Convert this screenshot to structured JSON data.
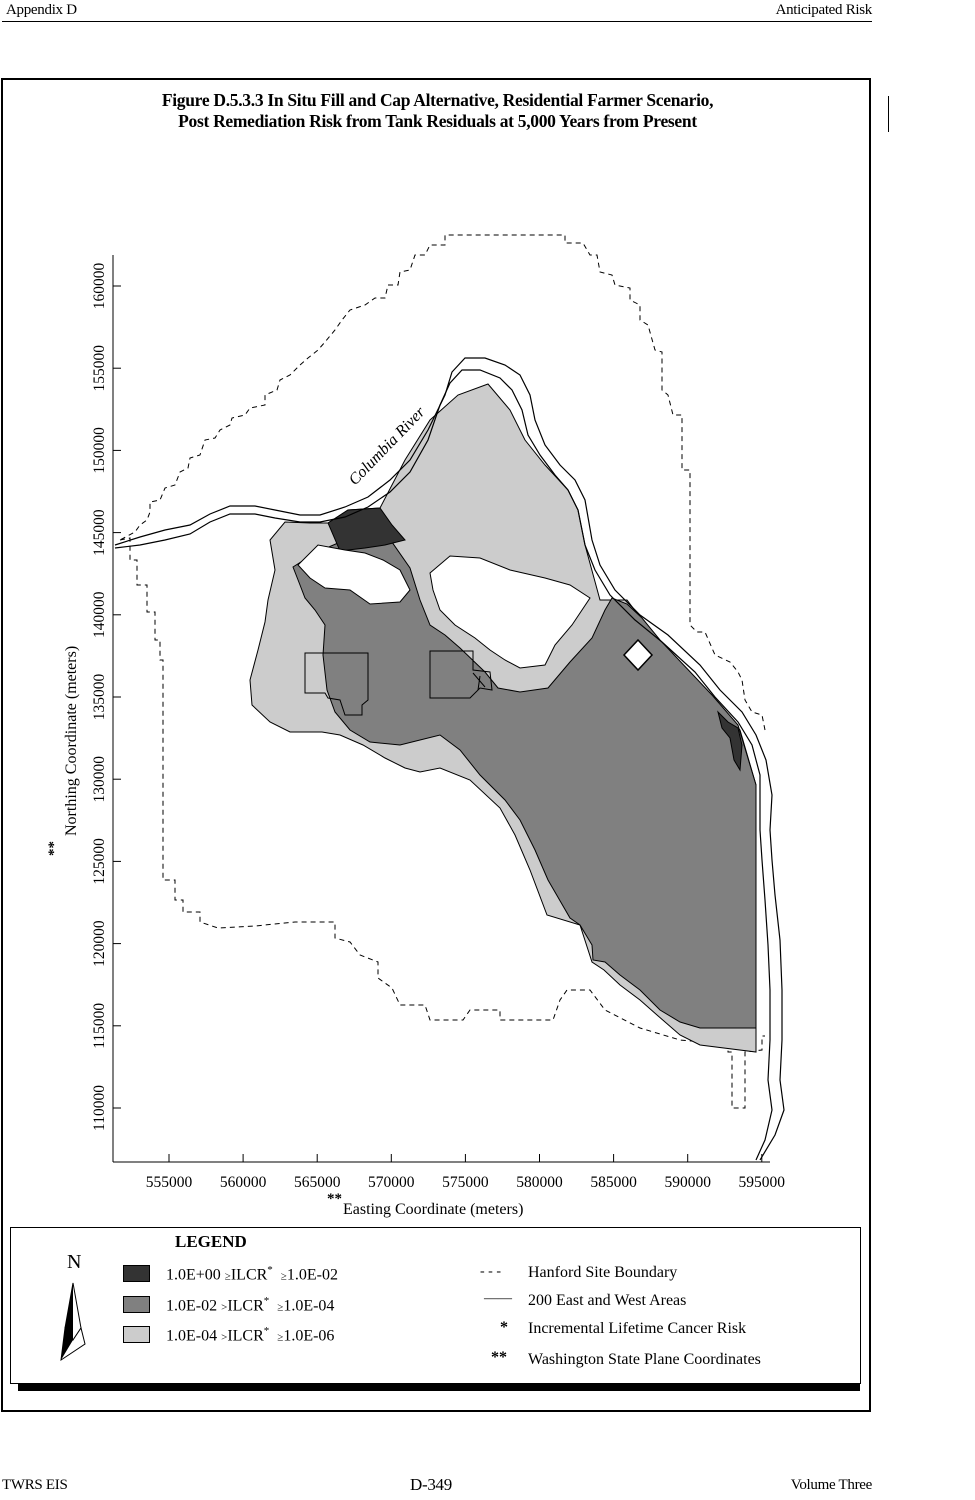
{
  "header": {
    "left": "Appendix D",
    "right": "Anticipated Risk"
  },
  "figure": {
    "title_line1": "Figure D.5.3.3  In Situ Fill and Cap Alternative, Residential Farmer Scenario,",
    "title_line2": "Post Remediation Risk from Tank Residuals at 5,000 Years from Present"
  },
  "map": {
    "river_label": "Columbia River",
    "x_axis_label": "Easting Coordinate (meters)",
    "x_axis_prefix": "**",
    "y_axis_label": "Northing Coordinate (meters)",
    "y_axis_prefix": "**",
    "x_ticks": [
      "555000",
      "560000",
      "565000",
      "570000",
      "575000",
      "580000",
      "585000",
      "590000",
      "595000"
    ],
    "y_ticks": [
      "110000",
      "115000",
      "120000",
      "125000",
      "130000",
      "135000",
      "140000",
      "145000",
      "150000",
      "155000",
      "160000"
    ],
    "colors": {
      "high_risk": "#333333",
      "mid_risk": "#808080",
      "low_risk": "#cccccc"
    }
  },
  "legend": {
    "title": "LEGEND",
    "north_symbol": "N",
    "entries": [
      {
        "range_hi": "1.0E+00",
        "op1": "≥",
        "label": "ILCR",
        "star": "*",
        "op2": "≥",
        "range_lo": "1.0E-02"
      },
      {
        "range_hi": "1.0E-02",
        "op1": ">",
        "label": "ILCR",
        "star": "*",
        "op2": "≥",
        "range_lo": "1.0E-04"
      },
      {
        "range_hi": "1.0E-04",
        "op1": ">",
        "label": "ILCR",
        "star": "*",
        "op2": "≥",
        "range_lo": "1.0E-06"
      }
    ],
    "keys": [
      {
        "symbol": "- - -",
        "text": "Hanford Site Boundary"
      },
      {
        "symbol": "——",
        "text": "200 East and West Areas"
      },
      {
        "symbol": "*",
        "text": "Incremental Lifetime Cancer Risk"
      },
      {
        "symbol": "**",
        "text": "Washington State Plane Coordinates"
      }
    ]
  },
  "footer": {
    "left": "TWRS EIS",
    "center": "D-349",
    "right": "Volume Three"
  }
}
